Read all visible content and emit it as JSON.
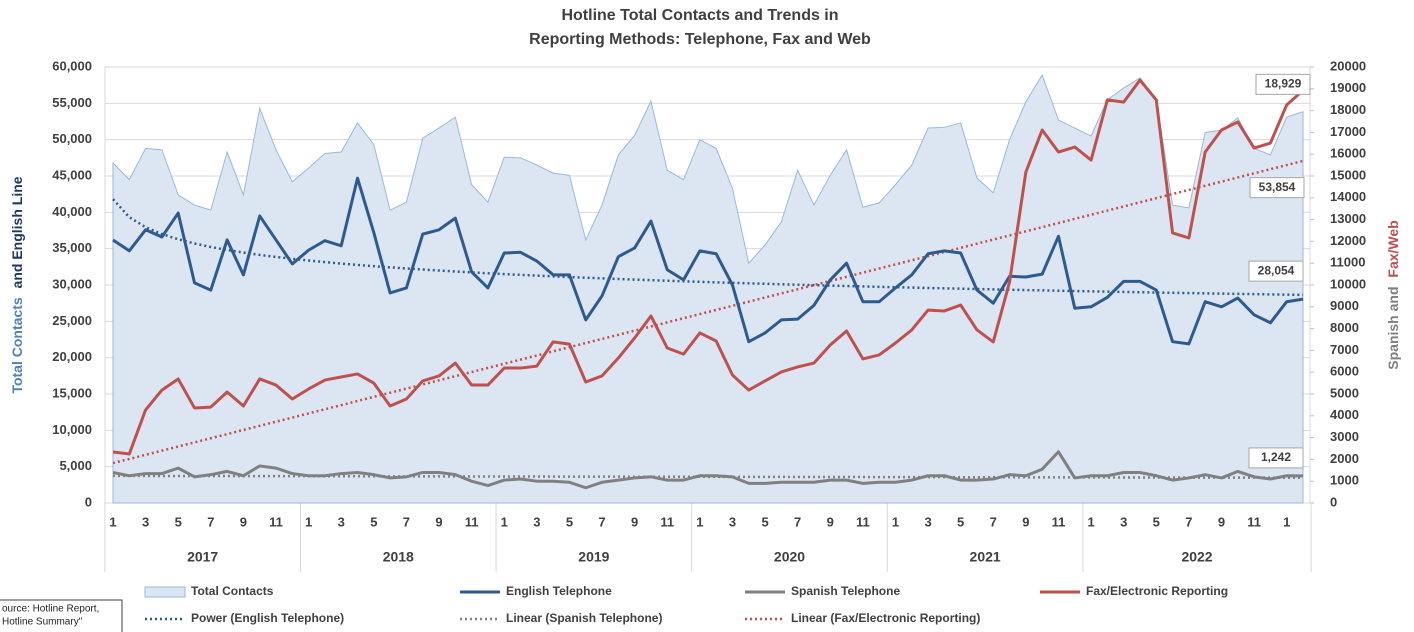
{
  "chart_data": {
    "type": "line",
    "title": [
      "Hotline Total Contacts and Trends in",
      "Reporting Methods: Telephone, Fax and Web"
    ],
    "y_label": [
      {
        "text": "Total Contacts",
        "color": "#4f81bd"
      },
      {
        "text": "and English Line",
        "color": "#1f3864"
      }
    ],
    "y2_label": [
      {
        "text": "Spanish and",
        "color": "#7f7f7f"
      },
      {
        "text": "Fax/Web",
        "color": "#c0504d"
      }
    ],
    "categories": [
      "1",
      null,
      "3",
      null,
      "5",
      null,
      "7",
      null,
      "9",
      null,
      "11",
      null,
      "1",
      null,
      "3",
      null,
      "5",
      null,
      "7",
      null,
      "9",
      null,
      "11",
      null,
      "1",
      null,
      "3",
      null,
      "5",
      null,
      "7",
      null,
      "9",
      null,
      "11",
      null,
      "1",
      null,
      "3",
      null,
      "5",
      null,
      "7",
      null,
      "9",
      null,
      "11",
      null,
      "1",
      null,
      "3",
      null,
      "5",
      null,
      "7",
      null,
      "9",
      null,
      "11",
      null,
      "1",
      null,
      "3",
      null,
      "5",
      null,
      "7",
      null,
      "9",
      null,
      "11",
      null,
      "1",
      null
    ],
    "groups": [
      {
        "label": "2017",
        "count": 12
      },
      {
        "label": "2018",
        "count": 12
      },
      {
        "label": "2019",
        "count": 12
      },
      {
        "label": "2020",
        "count": 12
      },
      {
        "label": "2021",
        "count": 12
      },
      {
        "label": "2022",
        "count": 14
      }
    ],
    "ylim": [
      0,
      60000
    ],
    "yticks": [
      {
        "value": 0,
        "label": "0"
      },
      {
        "value": 5000,
        "label": "5,000"
      },
      {
        "value": 10000,
        "label": "10,000"
      },
      {
        "value": 15000,
        "label": "15,000"
      },
      {
        "value": 20000,
        "label": "20,000"
      },
      {
        "value": 25000,
        "label": "25,000"
      },
      {
        "value": 30000,
        "label": "30,000"
      },
      {
        "value": 35000,
        "label": "35,000"
      },
      {
        "value": 40000,
        "label": "40,000"
      },
      {
        "value": 45000,
        "label": "45,000"
      },
      {
        "value": 50000,
        "label": "50,000"
      },
      {
        "value": 55000,
        "label": "55,000"
      },
      {
        "value": 60000,
        "label": "60,000"
      }
    ],
    "y2lim": [
      0,
      20000
    ],
    "y2ticks": [
      0,
      1000,
      2000,
      3000,
      4000,
      5000,
      6000,
      7000,
      8000,
      9000,
      10000,
      11000,
      12000,
      13000,
      14000,
      15000,
      16000,
      17000,
      18000,
      19000,
      20000
    ],
    "grid": true,
    "series": [
      {
        "name": "Total Contacts",
        "kind": "area",
        "color": "#9ab7dd",
        "fill": "#dce6f2",
        "values": [
          46800,
          44500,
          48800,
          48600,
          42400,
          41000,
          40300,
          48300,
          42400,
          54300,
          48600,
          44200,
          46100,
          48100,
          48300,
          52300,
          49300,
          40300,
          41400,
          50200,
          51600,
          53100,
          43800,
          41400,
          47600,
          47500,
          46500,
          45400,
          45100,
          36200,
          41000,
          47900,
          50600,
          55300,
          45800,
          44500,
          50000,
          48800,
          43300,
          33000,
          35500,
          38700,
          45800,
          41000,
          45100,
          48600,
          40700,
          41300,
          43800,
          46500,
          51600,
          51700,
          52300,
          44700,
          42700,
          50000,
          55200,
          58900,
          52700,
          51600,
          50500,
          55500,
          57100,
          58500,
          55500,
          41000,
          40600,
          51000,
          51300,
          53000,
          48800,
          47900,
          53100,
          53854
        ],
        "value_labels": [
          null,
          null,
          null,
          null,
          null,
          null,
          null,
          null,
          null,
          null,
          null,
          null,
          null,
          null,
          null,
          null,
          null,
          null,
          null,
          null,
          null,
          null,
          null,
          null,
          null,
          null,
          null,
          null,
          null,
          null,
          null,
          null,
          null,
          null,
          null,
          null,
          null,
          null,
          null,
          null,
          null,
          null,
          null,
          null,
          null,
          null,
          null,
          null,
          null,
          null,
          null,
          null,
          null,
          null,
          null,
          null,
          null,
          null,
          null,
          null,
          null,
          null,
          null,
          null,
          null,
          null,
          null,
          null,
          null,
          null,
          null,
          null,
          null,
          "53,854"
        ]
      },
      {
        "name": "English Telephone",
        "kind": "line",
        "color": "#2e5b8f",
        "values": [
          36200,
          34700,
          37600,
          36600,
          39900,
          30300,
          29300,
          36200,
          31400,
          39500,
          36200,
          32900,
          34800,
          36100,
          35400,
          44700,
          37200,
          28900,
          29600,
          37000,
          37600,
          39200,
          31800,
          29600,
          34400,
          34500,
          33300,
          31400,
          31400,
          25200,
          28500,
          33900,
          35100,
          38800,
          32100,
          30700,
          34700,
          34300,
          30000,
          22200,
          23400,
          25200,
          25300,
          27200,
          30700,
          33000,
          27700,
          27700,
          29600,
          31400,
          34300,
          34700,
          34400,
          29300,
          27500,
          31200,
          31100,
          31500,
          36700,
          26800,
          27000,
          28300,
          30500,
          30500,
          29300,
          22200,
          21900,
          27700,
          27000,
          28200,
          25900,
          24800,
          27700,
          28054
        ],
        "value_labels": [
          null,
          null,
          null,
          null,
          null,
          null,
          null,
          null,
          null,
          null,
          null,
          null,
          null,
          null,
          null,
          null,
          null,
          null,
          null,
          null,
          null,
          null,
          null,
          null,
          null,
          null,
          null,
          null,
          null,
          null,
          null,
          null,
          null,
          null,
          null,
          null,
          null,
          null,
          null,
          null,
          null,
          null,
          null,
          null,
          null,
          null,
          null,
          null,
          null,
          null,
          null,
          null,
          null,
          null,
          null,
          null,
          null,
          null,
          null,
          null,
          null,
          null,
          null,
          null,
          null,
          null,
          null,
          null,
          null,
          null,
          null,
          null,
          null,
          "28,054"
        ],
        "trendline": {
          "name": "Power (English Telephone)",
          "kind": "power"
        }
      },
      {
        "name": "Spanish Telephone",
        "kind": "line",
        "color": "#808080",
        "axis": "y2",
        "values": [
          1400,
          1250,
          1350,
          1350,
          1600,
          1200,
          1300,
          1450,
          1250,
          1700,
          1600,
          1350,
          1250,
          1250,
          1350,
          1400,
          1300,
          1150,
          1200,
          1400,
          1400,
          1300,
          1000,
          800,
          1050,
          1100,
          1000,
          1000,
          950,
          700,
          950,
          1050,
          1150,
          1200,
          1050,
          1050,
          1250,
          1250,
          1200,
          900,
          900,
          950,
          950,
          950,
          1050,
          1050,
          900,
          950,
          950,
          1050,
          1250,
          1250,
          1050,
          1050,
          1100,
          1300,
          1250,
          1550,
          2350,
          1150,
          1250,
          1250,
          1400,
          1400,
          1250,
          1050,
          1150,
          1300,
          1150,
          1450,
          1200,
          1100,
          1250,
          1242
        ],
        "value_labels": [
          null,
          null,
          null,
          null,
          null,
          null,
          null,
          null,
          null,
          null,
          null,
          null,
          null,
          null,
          null,
          null,
          null,
          null,
          null,
          null,
          null,
          null,
          null,
          null,
          null,
          null,
          null,
          null,
          null,
          null,
          null,
          null,
          null,
          null,
          null,
          null,
          null,
          null,
          null,
          null,
          null,
          null,
          null,
          null,
          null,
          null,
          null,
          null,
          null,
          null,
          null,
          null,
          null,
          null,
          null,
          null,
          null,
          null,
          null,
          null,
          null,
          null,
          null,
          null,
          null,
          null,
          null,
          null,
          null,
          null,
          null,
          null,
          null,
          "1,242"
        ],
        "trendline": {
          "name": "Linear (Spanish Telephone)",
          "kind": "linear"
        }
      },
      {
        "name": "Fax/Electronic Reporting",
        "kind": "line",
        "color": "#c0504d",
        "axis": "y2",
        "values": [
          2340,
          2250,
          4270,
          5180,
          5690,
          4360,
          4400,
          5090,
          4450,
          5690,
          5410,
          4770,
          5230,
          5640,
          5780,
          5920,
          5500,
          4450,
          4770,
          5600,
          5830,
          6420,
          5410,
          5410,
          6190,
          6190,
          6280,
          7390,
          7290,
          5550,
          5830,
          6650,
          7570,
          8580,
          7110,
          6830,
          7800,
          7430,
          5870,
          5180,
          5600,
          6010,
          6240,
          6420,
          7250,
          7890,
          6610,
          6790,
          7340,
          7940,
          8850,
          8810,
          9080,
          7940,
          7390,
          10140,
          15180,
          17110,
          16100,
          16330,
          15730,
          18490,
          18390,
          19400,
          18490,
          12390,
          12160,
          16100,
          17110,
          17480,
          16280,
          16510,
          18260,
          18929
        ],
        "value_labels": [
          null,
          null,
          null,
          null,
          null,
          null,
          null,
          null,
          null,
          null,
          null,
          null,
          null,
          null,
          null,
          null,
          null,
          null,
          null,
          null,
          null,
          null,
          null,
          null,
          null,
          null,
          null,
          null,
          null,
          null,
          null,
          null,
          null,
          null,
          null,
          null,
          null,
          null,
          null,
          null,
          null,
          null,
          null,
          null,
          null,
          null,
          null,
          null,
          null,
          null,
          null,
          null,
          null,
          null,
          null,
          null,
          null,
          null,
          null,
          null,
          null,
          null,
          null,
          null,
          null,
          null,
          null,
          null,
          null,
          null,
          null,
          null,
          null,
          "18,929"
        ],
        "trendline": {
          "name": "Linear (Fax/Electronic Reporting)",
          "kind": "linear"
        }
      }
    ],
    "source": [
      "ource: Hotline Report,",
      "Hotline Summary\""
    ]
  }
}
